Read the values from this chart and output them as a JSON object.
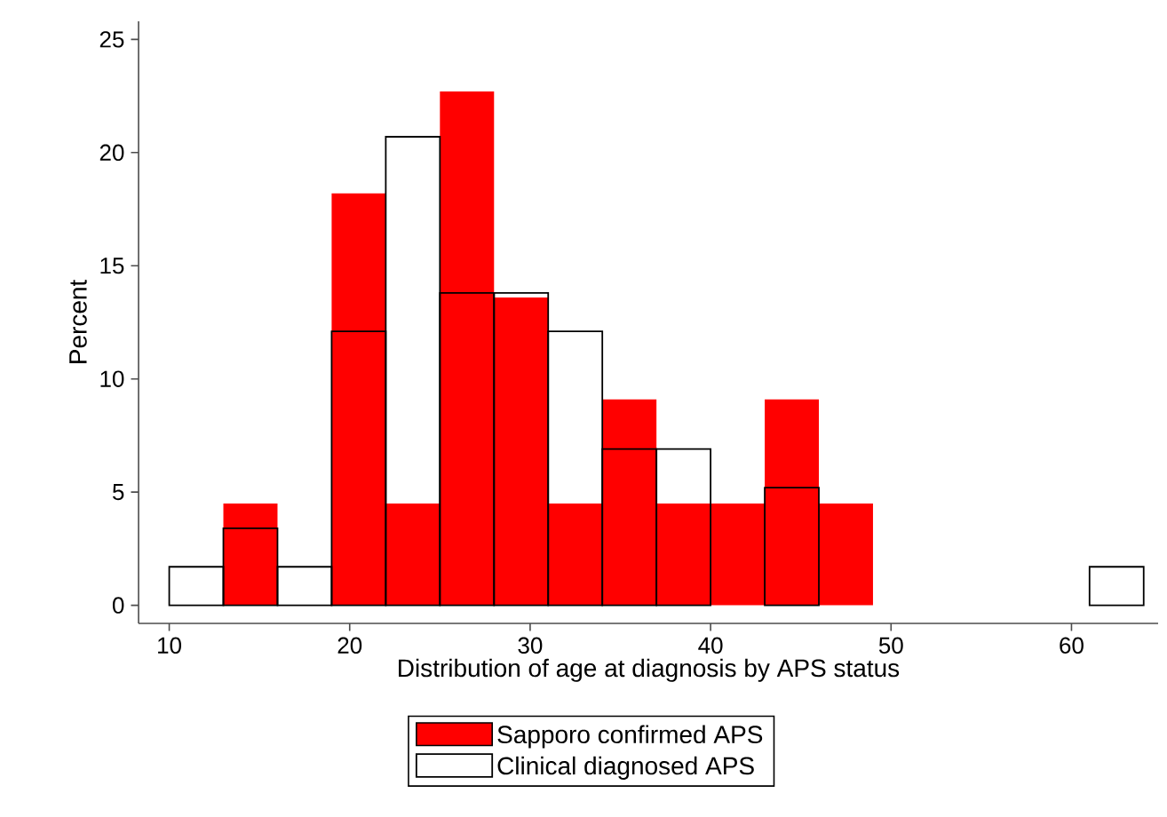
{
  "chart_data": {
    "type": "histogram",
    "xlabel": "Distribution of age at diagnosis by APS status",
    "ylabel": "Percent",
    "bins": [
      10,
      13,
      16,
      19,
      22,
      25,
      28,
      31,
      34,
      37,
      40,
      43,
      46,
      49,
      52,
      55,
      58,
      61,
      64
    ],
    "series": [
      {
        "name": "Sapporo confirmed APS",
        "color": "#ff0000",
        "values": [
          0,
          4.5,
          0,
          18.2,
          4.5,
          22.7,
          13.6,
          4.5,
          9.1,
          4.5,
          4.5,
          9.1,
          4.5,
          0,
          0,
          0,
          0,
          0
        ]
      },
      {
        "name": "Clinical diagnosed APS",
        "color": "#000000",
        "values": [
          1.7,
          3.4,
          1.7,
          12.1,
          20.7,
          13.8,
          13.8,
          12.1,
          6.9,
          6.9,
          0,
          5.2,
          0,
          0,
          0,
          0,
          0,
          1.7
        ]
      }
    ],
    "xlim": [
      8.3,
      64.8
    ],
    "ylim": [
      -0.8,
      25.8
    ],
    "xticks": [
      10,
      20,
      30,
      40,
      50,
      60
    ],
    "yticks": [
      0,
      5,
      10,
      15,
      20,
      25
    ],
    "legend": "bottom",
    "grid": false
  }
}
